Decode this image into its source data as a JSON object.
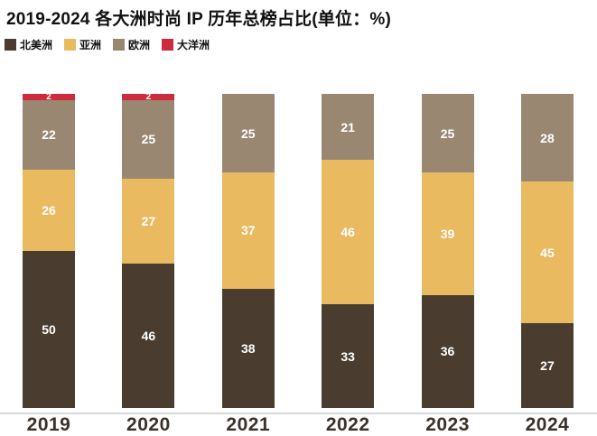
{
  "title": "2019-2024 各大洲时尚 IP 历年总榜占比(单位：%)",
  "legend": [
    {
      "label": "北美洲",
      "color": "#4A3D30"
    },
    {
      "label": "亚洲",
      "color": "#E9BA60"
    },
    {
      "label": "欧洲",
      "color": "#998771"
    },
    {
      "label": "大洋洲",
      "color": "#CE2B3E"
    }
  ],
  "chart_data": {
    "type": "bar",
    "stacked": true,
    "title": "2019-2024 各大洲时尚 IP 历年总榜占比(单位：%)",
    "unit": "%",
    "categories": [
      "2019",
      "2020",
      "2021",
      "2022",
      "2023",
      "2024"
    ],
    "series": [
      {
        "name": "北美洲",
        "color": "#4A3D30",
        "values": [
          50,
          46,
          38,
          33,
          36,
          27
        ]
      },
      {
        "name": "亚洲",
        "color": "#E9BA60",
        "values": [
          26,
          27,
          37,
          46,
          39,
          45
        ]
      },
      {
        "name": "欧洲",
        "color": "#998771",
        "values": [
          22,
          25,
          25,
          21,
          25,
          28
        ]
      },
      {
        "name": "大洋洲",
        "color": "#CE2B3E",
        "values": [
          2,
          2,
          0,
          0,
          0,
          0
        ]
      }
    ],
    "ylim": [
      0,
      100
    ],
    "grid": false,
    "value_labels": true,
    "legend_position": "top-left",
    "baseline_color": "#D9D9D9"
  }
}
